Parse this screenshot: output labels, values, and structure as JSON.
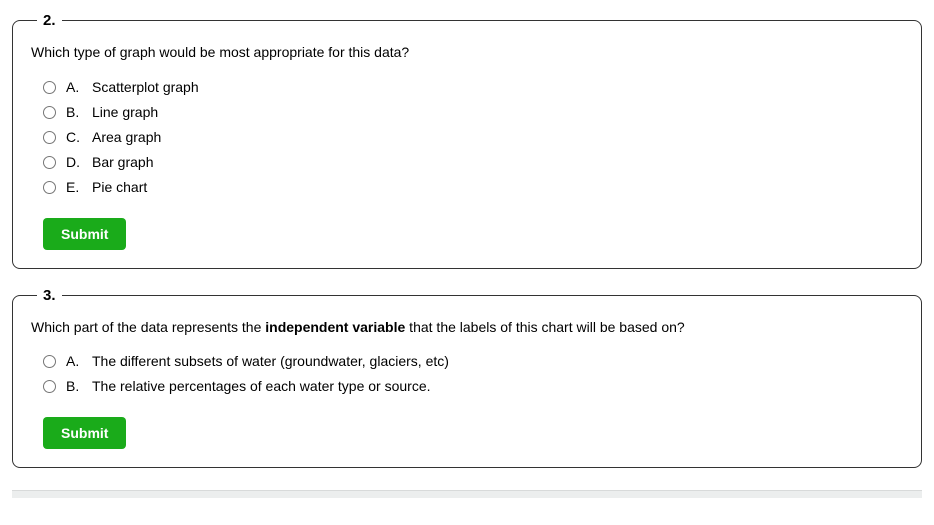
{
  "questions": [
    {
      "number": "2.",
      "prompt_html": "Which type of graph would be most appropriate for this data?",
      "options": [
        {
          "letter": "A.",
          "text": "Scatterplot graph"
        },
        {
          "letter": "B.",
          "text": "Line graph"
        },
        {
          "letter": "C.",
          "text": "Area graph"
        },
        {
          "letter": "D.",
          "text": "Bar graph"
        },
        {
          "letter": "E.",
          "text": "Pie chart"
        }
      ],
      "submit_label": "Submit"
    },
    {
      "number": "3.",
      "prompt_html": "Which part of the data represents the <strong>independent variable</strong> that the labels of this chart will be based on?",
      "options": [
        {
          "letter": "A.",
          "text": "The different subsets of water (groundwater, glaciers, etc)"
        },
        {
          "letter": "B.",
          "text": "The relative percentages of each water type or source."
        }
      ],
      "submit_label": "Submit"
    }
  ],
  "colors": {
    "submit_bg": "#1aab1a",
    "submit_text": "#ffffff",
    "border": "#333333",
    "footer_bg": "#eceeee"
  }
}
